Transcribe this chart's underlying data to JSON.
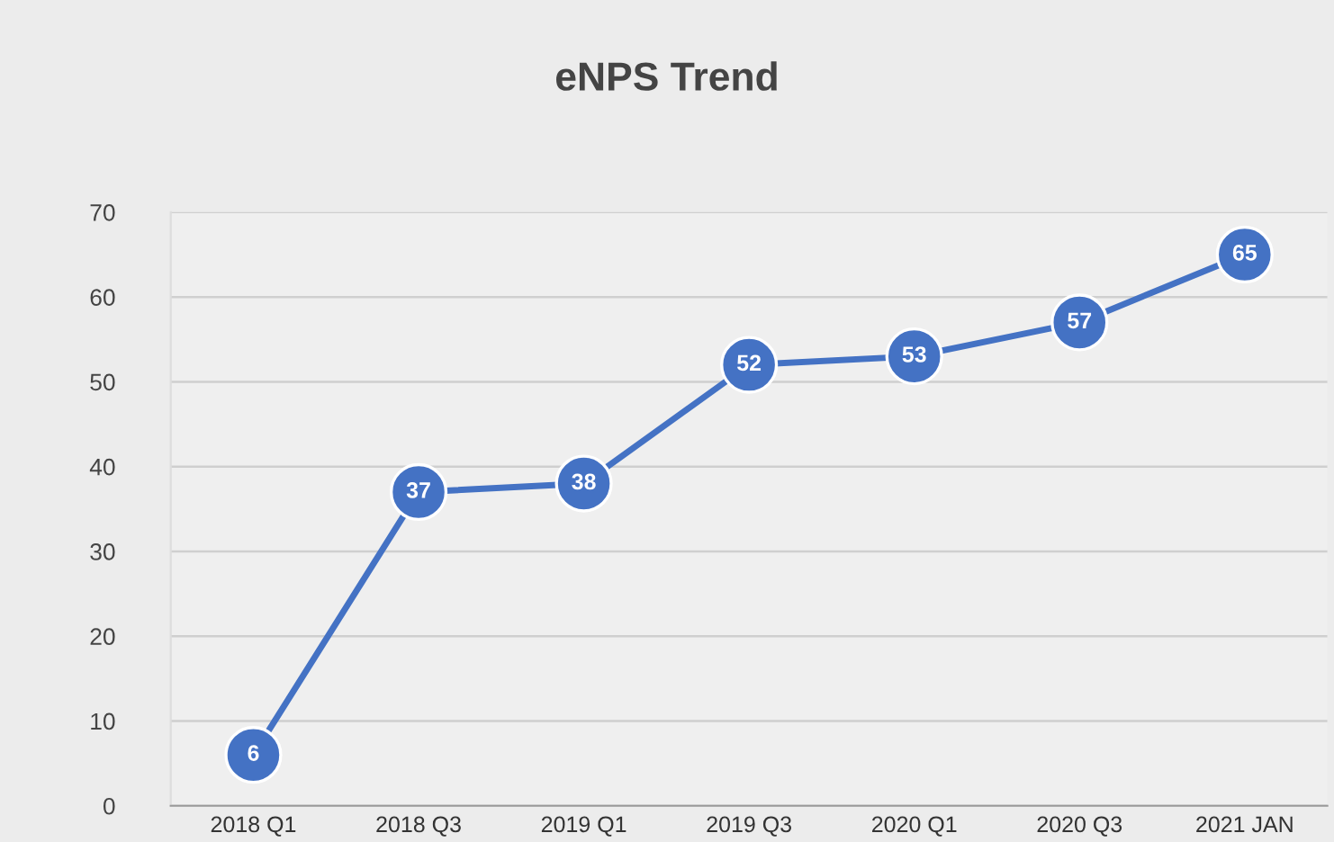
{
  "chart_data": {
    "type": "line",
    "title": "eNPS Trend",
    "categories": [
      "2018 Q1",
      "2018 Q3",
      "2019 Q1",
      "2019 Q3",
      "2020 Q1",
      "2020 Q3",
      "2021 JAN"
    ],
    "series": [
      {
        "color": "#4472c4",
        "values": [
          6,
          37,
          38,
          52,
          53,
          57,
          65
        ]
      }
    ],
    "ylim": [
      0,
      70
    ],
    "yticks": [
      0,
      10,
      20,
      30,
      40,
      50,
      60,
      70
    ],
    "grid": "y",
    "marker": "circle",
    "line_style": "solid",
    "data_labels": true
  }
}
